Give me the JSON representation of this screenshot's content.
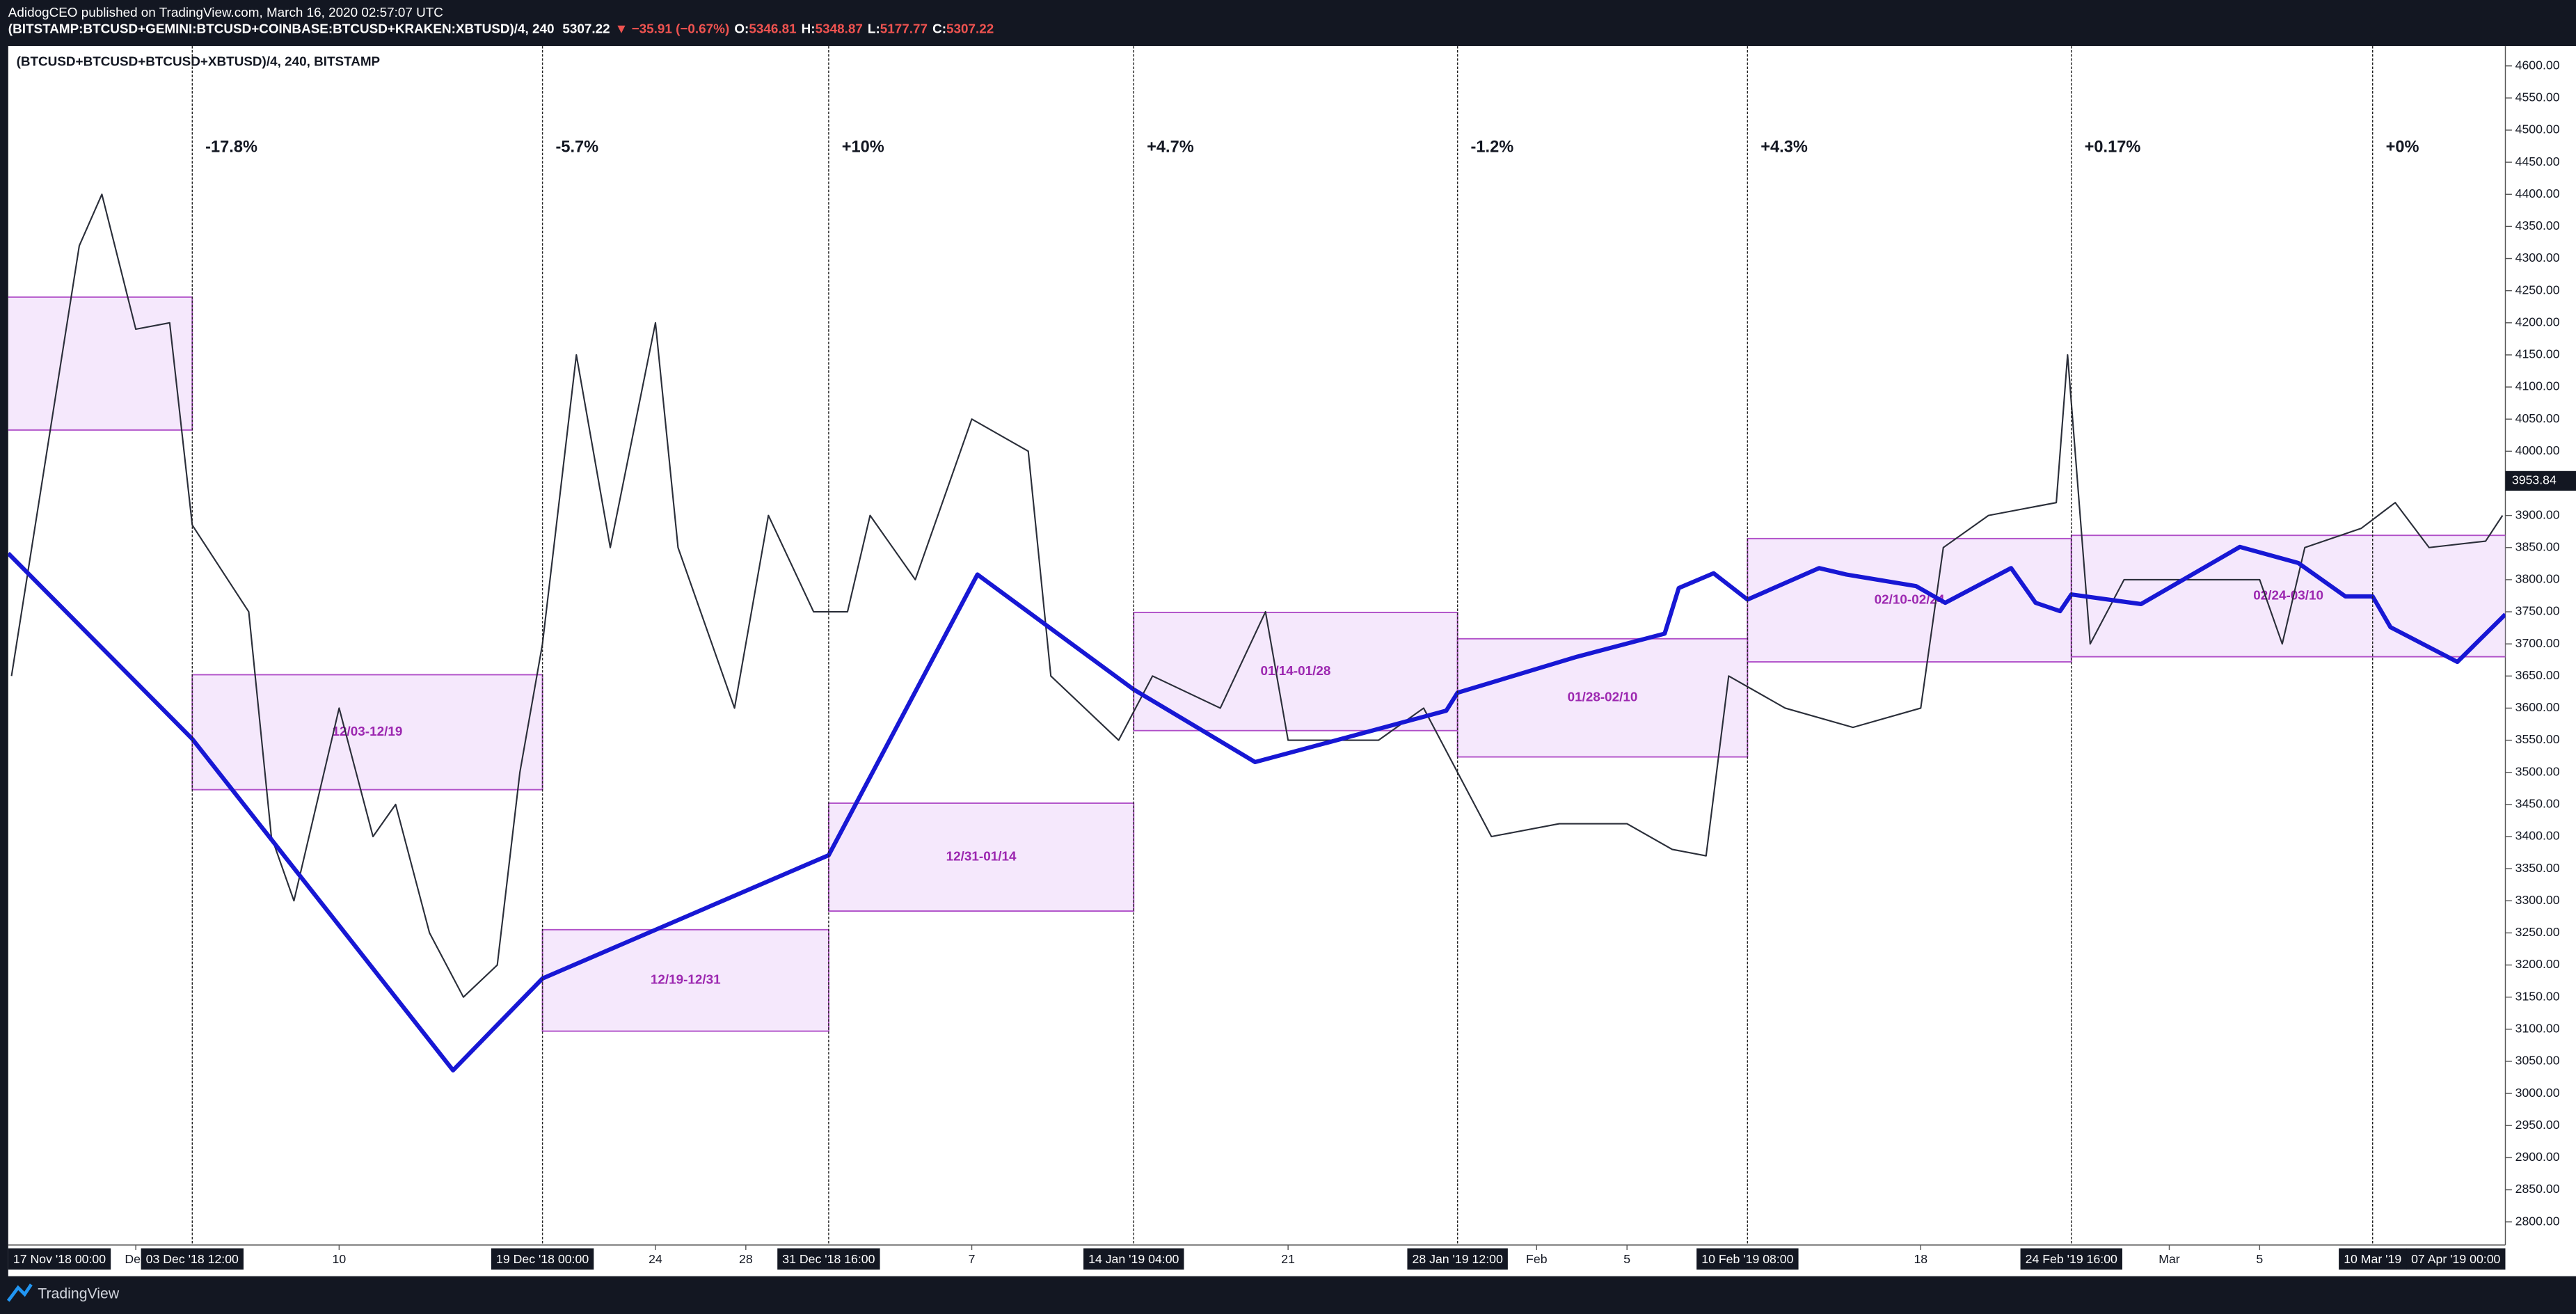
{
  "header": {
    "publisher": "AdidogCEO published on TradingView.com, March 16, 2020 02:57:07 UTC",
    "symbol": "(BITSTAMP:BTCUSD+GEMINI:BTCUSD+COINBASE:BTCUSD+KRAKEN:XBTUSD)/4, 240",
    "last": "5307.22",
    "change": "▼ −35.91 (−0.67%)",
    "ohlc": [
      {
        "label": "O:",
        "value": "5346.81"
      },
      {
        "label": "H:",
        "value": "5348.87"
      },
      {
        "label": "L:",
        "value": "5177.77"
      },
      {
        "label": "C:",
        "value": "5307.22"
      }
    ]
  },
  "footer": {
    "brand": "TradingView"
  },
  "chart_data": {
    "type": "line",
    "xlim": [
      "2018-11-25 08:30",
      "2019-03-15 21:00"
    ],
    "ylim": [
      2764,
      4631
    ],
    "xticks": [
      {
        "value": "2018-12-01 00:00",
        "label": "Dec"
      },
      {
        "value": "2018-12-10 00:00",
        "label": "10"
      },
      {
        "value": "2018-12-24 00:00",
        "label": "24"
      },
      {
        "value": "2018-12-28 00:00",
        "label": "28"
      },
      {
        "value": "2019-01-07 00:00",
        "label": "7"
      },
      {
        "value": "2019-01-21 00:00",
        "label": "21"
      },
      {
        "value": "2019-02-01 00:00",
        "label": "Feb"
      },
      {
        "value": "2019-02-05 00:00",
        "label": "5"
      },
      {
        "value": "2019-02-18 00:00",
        "label": "18"
      },
      {
        "value": "2019-03-01 00:00",
        "label": "Mar"
      },
      {
        "value": "2019-03-05 00:00",
        "label": "5"
      }
    ],
    "yticks": [
      {
        "value": 2800,
        "label": "2800.00"
      },
      {
        "value": 2850,
        "label": "2850.00"
      },
      {
        "value": 2900,
        "label": "2900.00"
      },
      {
        "value": 2950,
        "label": "2950.00"
      },
      {
        "value": 3000,
        "label": "3000.00"
      },
      {
        "value": 3050,
        "label": "3050.00"
      },
      {
        "value": 3100,
        "label": "3100.00"
      },
      {
        "value": 3150,
        "label": "3150.00"
      },
      {
        "value": 3200,
        "label": "3200.00"
      },
      {
        "value": 3250,
        "label": "3250.00"
      },
      {
        "value": 3300,
        "label": "3300.00"
      },
      {
        "value": 3350,
        "label": "3350.00"
      },
      {
        "value": 3400,
        "label": "3400.00"
      },
      {
        "value": 3450,
        "label": "3450.00"
      },
      {
        "value": 3500,
        "label": "3500.00"
      },
      {
        "value": 3550,
        "label": "3550.00"
      },
      {
        "value": 3600,
        "label": "3600.00"
      },
      {
        "value": 3650,
        "label": "3650.00"
      },
      {
        "value": 3700,
        "label": "3700.00"
      },
      {
        "value": 3750,
        "label": "3750.00"
      },
      {
        "value": 3800,
        "label": "3800.00"
      },
      {
        "value": 3850,
        "label": "3850.00"
      },
      {
        "value": 3900,
        "label": "3900.00"
      },
      {
        "value": 3950,
        "label": "3950.00"
      },
      {
        "value": 4000,
        "label": "4000.00"
      },
      {
        "value": 4050,
        "label": "4050.00"
      },
      {
        "value": 4100,
        "label": "4100.00"
      },
      {
        "value": 4150,
        "label": "4150.00"
      },
      {
        "value": 4200,
        "label": "4200.00"
      },
      {
        "value": 4250,
        "label": "4250.00"
      },
      {
        "value": 4300,
        "label": "4300.00"
      },
      {
        "value": 4350,
        "label": "4350.00"
      },
      {
        "value": 4400,
        "label": "4400.00"
      },
      {
        "value": 4450,
        "label": "4450.00"
      },
      {
        "value": 4500,
        "label": "4500.00"
      },
      {
        "value": 4550,
        "label": "4550.00"
      },
      {
        "value": 4600,
        "label": "4600.00"
      }
    ],
    "last_price": 3953.84,
    "grid": false,
    "markers": [
      {
        "x": "2018-11-17 00:00",
        "label": "17 Nov '18  00:00"
      },
      {
        "x": "2018-12-03 12:00",
        "label": "03 Dec '18  12:00",
        "change": "-17.8%"
      },
      {
        "x": "2018-12-19 00:00",
        "label": "19 Dec '18  00:00",
        "change": "-5.7%"
      },
      {
        "x": "2018-12-31 16:00",
        "label": "31 Dec '18  16:00",
        "change": "+10%"
      },
      {
        "x": "2019-01-14 04:00",
        "label": "14 Jan '19  04:00",
        "change": "+4.7%"
      },
      {
        "x": "2019-01-28 12:00",
        "label": "28 Jan '19  12:00",
        "change": "-1.2%"
      },
      {
        "x": "2019-02-10 08:00",
        "label": "10 Feb '19  08:00",
        "change": "+4.3%"
      },
      {
        "x": "2019-02-24 16:00",
        "label": "24 Feb '19  16:00",
        "change": "+0.17%"
      },
      {
        "x": "2019-03-10 00:00",
        "label": "10 Mar '19",
        "change": "+0%"
      },
      {
        "x": "2019-04-07 00:00",
        "label": "07 Apr '19  00:00"
      }
    ],
    "boxes": [
      {
        "x0": "2018-11-17 00:00",
        "x1": "2018-12-03 12:00",
        "top": 4240,
        "bottom": 4033
      },
      {
        "x0": "2018-12-03 12:00",
        "x1": "2018-12-19 00:00",
        "top": 3652,
        "bottom": 3473,
        "label": "12/03-12/19"
      },
      {
        "x0": "2018-12-19 00:00",
        "x1": "2018-12-31 16:00",
        "top": 3255,
        "bottom": 3097,
        "label": "12/19-12/31"
      },
      {
        "x0": "2018-12-31 16:00",
        "x1": "2019-01-14 04:00",
        "top": 3452,
        "bottom": 3284,
        "label": "12/31-01/14"
      },
      {
        "x0": "2019-01-14 04:00",
        "x1": "2019-01-28 12:00",
        "top": 3749,
        "bottom": 3565,
        "label": "01/14-01/28"
      },
      {
        "x0": "2019-01-28 12:00",
        "x1": "2019-02-10 08:00",
        "top": 3708,
        "bottom": 3524,
        "label": "01/28-02/10"
      },
      {
        "x0": "2019-02-10 08:00",
        "x1": "2019-02-24 16:00",
        "top": 3864,
        "bottom": 3672,
        "label": "02/10-02/24"
      },
      {
        "x0": "2019-02-24 16:00",
        "x1": "2019-03-17 00:00",
        "top": 3869,
        "bottom": 3680,
        "label": "02/24-03/10"
      }
    ],
    "series": [
      {
        "name": "(BTCUSD+BTCUSD+BTCUSD+XBTUSD)/4, 240, BITSTAMP",
        "color": "#2a2e39",
        "x": [
          "2018-11-25 12:00",
          "2018-11-28 12:00",
          "2018-11-29 12:00",
          "2018-12-01 00:00",
          "2018-12-02 12:00",
          "2018-12-03 12:00",
          "2018-12-06 00:00",
          "2018-12-07 00:00",
          "2018-12-08 00:00",
          "2018-12-10 00:00",
          "2018-12-11 12:00",
          "2018-12-12 12:00",
          "2018-12-14 00:00",
          "2018-12-15 12:00",
          "2018-12-17 00:00",
          "2018-12-18 00:00",
          "2018-12-19 00:00",
          "2018-12-20 12:00",
          "2018-12-22 00:00",
          "2018-12-24 00:00",
          "2018-12-25 00:00",
          "2018-12-27 12:00",
          "2018-12-29 00:00",
          "2018-12-31 00:00",
          "2019-01-01 12:00",
          "2019-01-02 12:00",
          "2019-01-04 12:00",
          "2019-01-07 00:00",
          "2019-01-09 12:00",
          "2019-01-10 12:00",
          "2019-01-13 12:00",
          "2019-01-15 00:00",
          "2019-01-18 00:00",
          "2019-01-20 00:00",
          "2019-01-21 00:00",
          "2019-01-25 00:00",
          "2019-01-27 00:00",
          "2019-01-28 12:00",
          "2019-01-30 00:00",
          "2019-02-02 00:00",
          "2019-02-05 00:00",
          "2019-02-07 00:00",
          "2019-02-08 12:00",
          "2019-02-09 12:00",
          "2019-02-12 00:00",
          "2019-02-15 00:00",
          "2019-02-18 00:00",
          "2019-02-19 00:00",
          "2019-02-21 00:00",
          "2019-02-24 00:00",
          "2019-02-24 12:00",
          "2019-02-25 12:00",
          "2019-02-27 00:00",
          "2019-03-02 00:00",
          "2019-03-05 00:00",
          "2019-03-06 00:00",
          "2019-03-07 00:00",
          "2019-03-09 12:00",
          "2019-03-11 00:00",
          "2019-03-12 12:00",
          "2019-03-15 00:00",
          "2019-03-15 18:00"
        ],
        "values": [
          3650,
          4320,
          4400,
          4190,
          4200,
          3885,
          3750,
          3400,
          3300,
          3600,
          3400,
          3450,
          3250,
          3150,
          3200,
          3500,
          3700,
          4150,
          3850,
          4200,
          3850,
          3600,
          3900,
          3750,
          3750,
          3900,
          3800,
          4050,
          4000,
          3650,
          3550,
          3650,
          3600,
          3750,
          3550,
          3550,
          3600,
          3500,
          3400,
          3420,
          3420,
          3380,
          3370,
          3650,
          3600,
          3570,
          3600,
          3850,
          3900,
          3920,
          4150,
          3700,
          3800,
          3800,
          3800,
          3700,
          3850,
          3880,
          3920,
          3850,
          3860,
          3900
        ]
      },
      {
        "color": "#1717d4",
        "x": [
          "2018-11-25 08:30",
          "2018-12-03 12:00",
          "2018-12-15 01:00",
          "2018-12-19 00:00",
          "2018-12-31 16:00",
          "2019-01-07 06:00",
          "2019-01-14 04:00",
          "2019-01-19 13:00",
          "2019-01-28 00:00",
          "2019-01-28 12:00",
          "2019-02-02 19:00",
          "2019-02-06 16:00",
          "2019-02-07 07:00",
          "2019-02-08 20:00",
          "2019-02-10 08:00",
          "2019-02-13 12:00",
          "2019-02-14 17:00",
          "2019-02-17 19:00",
          "2019-02-19 02:00",
          "2019-02-22 00:00",
          "2019-02-23 02:00",
          "2019-02-24 04:00",
          "2019-02-24 16:00",
          "2019-02-27 18:00",
          "2019-03-04 03:00",
          "2019-03-06 17:00",
          "2019-03-08 19:00",
          "2019-03-10 00:00",
          "2019-03-10 19:00",
          "2019-03-13 18:00",
          "2019-03-15 21:00"
        ],
        "values": [
          3841,
          3552,
          3036,
          3179,
          3371,
          3808,
          3629,
          3516,
          3596,
          3624,
          3680,
          3716,
          3787,
          3810,
          3769,
          3818,
          3808,
          3790,
          3764,
          3818,
          3764,
          3751,
          3777,
          3762,
          3851,
          3826,
          3774,
          3774,
          3726,
          3672,
          3746
        ]
      }
    ]
  }
}
